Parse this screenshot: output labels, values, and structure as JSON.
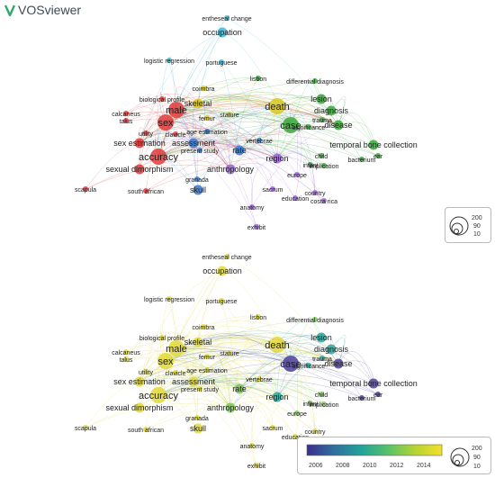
{
  "app": {
    "title": "VOSviewer",
    "logo": "vosviewer-logo"
  },
  "size_legend": [
    "200",
    "90",
    "10"
  ],
  "color_legend": {
    "ticks": [
      "2006",
      "2008",
      "2010",
      "2012",
      "2014"
    ],
    "gradient": [
      "#3b2f8f",
      "#2f6f9e",
      "#21a29b",
      "#57c16a",
      "#b5d334",
      "#f5e02a"
    ]
  },
  "colors": {
    "cluster_red": "#e0393a",
    "cluster_green": "#3aa63a",
    "cluster_blue": "#3a78c9",
    "cluster_yellow": "#d8c81f",
    "cluster_purple": "#9a62d6",
    "cluster_cyan": "#39b6d8",
    "cluster_orange": "#f09a2c"
  },
  "terms": [
    {
      "label": "entheseal change",
      "size": "s",
      "overlay": "yellow"
    },
    {
      "label": "occupation",
      "size": "m",
      "overlay": "yellow"
    },
    {
      "label": "logistic regression",
      "size": "s",
      "overlay": "yellow"
    },
    {
      "label": "portuguese",
      "size": "s",
      "overlay": "yellow"
    },
    {
      "label": "lisbon",
      "size": "s",
      "overlay": "yellow"
    },
    {
      "label": "differential diagnosis",
      "size": "s",
      "overlay": "green"
    },
    {
      "label": "coimbra",
      "size": "s",
      "overlay": "yellow"
    },
    {
      "label": "lesion",
      "size": "m",
      "overlay": "teal"
    },
    {
      "label": "biological profile",
      "size": "s",
      "overlay": "yellow"
    },
    {
      "label": "male",
      "size": "l",
      "overlay": "yellow"
    },
    {
      "label": "skeletal",
      "size": "m",
      "overlay": "yellow"
    },
    {
      "label": "death",
      "size": "l",
      "overlay": "yellow"
    },
    {
      "label": "diagnosis",
      "size": "m",
      "overlay": "teal"
    },
    {
      "label": "trauma",
      "size": "s",
      "overlay": "teal"
    },
    {
      "label": "calcaneus",
      "size": "s",
      "overlay": "yellow"
    },
    {
      "label": "talus",
      "size": "s",
      "overlay": "yellow"
    },
    {
      "label": "sex",
      "size": "l",
      "overlay": "yellow"
    },
    {
      "label": "femur",
      "size": "s",
      "overlay": "yellow"
    },
    {
      "label": "stature",
      "size": "s",
      "overlay": "yellow"
    },
    {
      "label": "significance",
      "size": "s",
      "overlay": "teal"
    },
    {
      "label": "case",
      "size": "l",
      "overlay": "indigo"
    },
    {
      "label": "disease",
      "size": "m",
      "overlay": "indigo"
    },
    {
      "label": "utility",
      "size": "s",
      "overlay": "yellow"
    },
    {
      "label": "clavicle",
      "size": "s",
      "overlay": "yellow"
    },
    {
      "label": "age estimation",
      "size": "s",
      "overlay": "yellow"
    },
    {
      "label": "sex estimation",
      "size": "m",
      "overlay": "yellow"
    },
    {
      "label": "assessment",
      "size": "m",
      "overlay": "yellow"
    },
    {
      "label": "present study",
      "size": "s",
      "overlay": "yellow"
    },
    {
      "label": "rate",
      "size": "m",
      "overlay": "green"
    },
    {
      "label": "vertebrae",
      "size": "s",
      "overlay": "yellow"
    },
    {
      "label": "temporal bone collection",
      "size": "m",
      "overlay": "indigo"
    },
    {
      "label": "accuracy",
      "size": "l",
      "overlay": "yellow"
    },
    {
      "label": "region",
      "size": "m",
      "overlay": "teal"
    },
    {
      "label": "child",
      "size": "s",
      "overlay": "green"
    },
    {
      "label": "ear",
      "size": "s",
      "overlay": "indigo"
    },
    {
      "label": "bacterium",
      "size": "s",
      "overlay": "indigo"
    },
    {
      "label": "sexual dimorphism",
      "size": "m",
      "overlay": "yellow"
    },
    {
      "label": "anthropology",
      "size": "m",
      "overlay": "green"
    },
    {
      "label": "infant",
      "size": "s",
      "overlay": "green"
    },
    {
      "label": "implication",
      "size": "s",
      "overlay": "green"
    },
    {
      "label": "europe",
      "size": "s",
      "overlay": "green"
    },
    {
      "label": "granada",
      "size": "s",
      "overlay": "yellow"
    },
    {
      "label": "south african",
      "size": "s",
      "overlay": "yellow"
    },
    {
      "label": "skull",
      "size": "m",
      "overlay": "yellow"
    },
    {
      "label": "sacrum",
      "size": "s",
      "overlay": "yellow"
    },
    {
      "label": "scapula",
      "size": "s",
      "overlay": "yellow"
    },
    {
      "label": "country",
      "size": "s",
      "overlay": "yellow"
    },
    {
      "label": "education",
      "size": "s",
      "overlay": "yellow"
    },
    {
      "label": "costa rica",
      "size": "s",
      "overlay": "yellow"
    },
    {
      "label": "anatomy",
      "size": "s",
      "overlay": "yellow"
    },
    {
      "label": "exhibit",
      "size": "s",
      "overlay": "yellow"
    }
  ]
}
